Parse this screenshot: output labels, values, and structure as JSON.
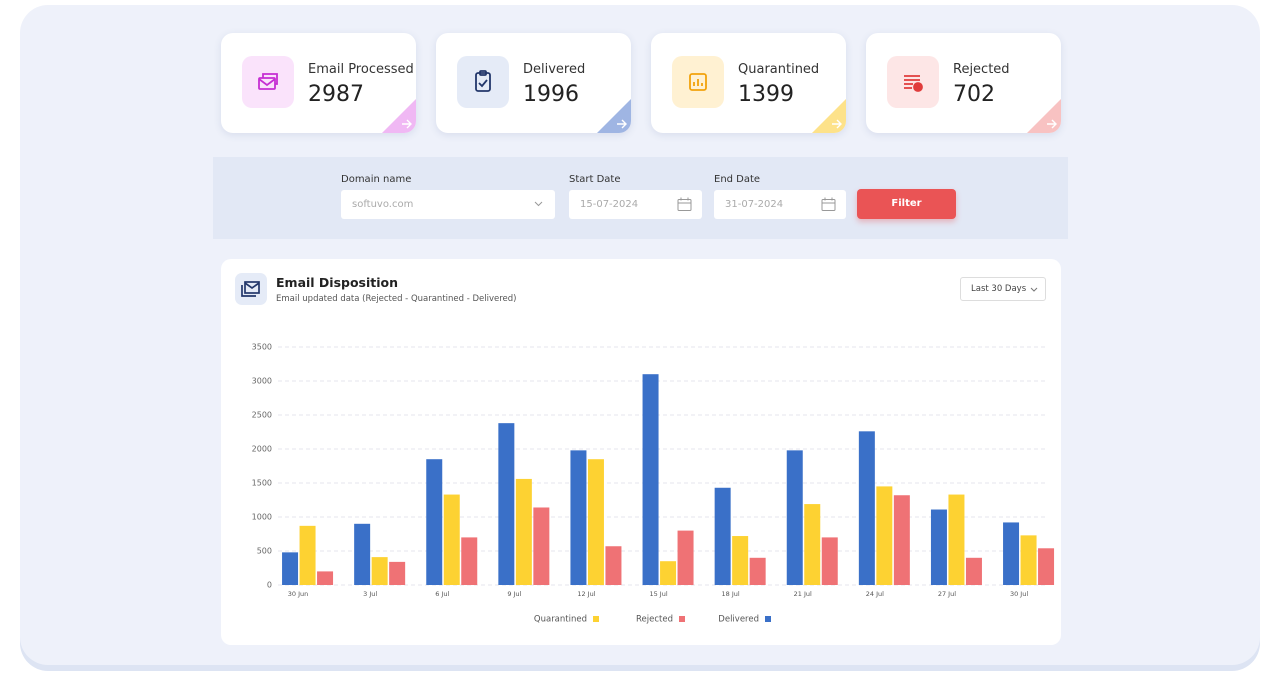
{
  "cards": [
    {
      "label": "Email Processed",
      "value": 2987
    },
    {
      "label": "Delivered",
      "value": 1996
    },
    {
      "label": "Quarantined",
      "value": 1399
    },
    {
      "label": "Rejected",
      "value": 702
    }
  ],
  "filter": {
    "domain_label": "Domain name",
    "domain_value": "softuvo.com",
    "start_label": "Start Date",
    "start_value": "15-07-2024",
    "end_label": "End Date",
    "end_value": "31-07-2024",
    "button": "Filter"
  },
  "panel": {
    "title": "Email Disposition",
    "subtitle": "Email updated data (Rejected - Quarantined - Delivered)",
    "range": "Last 30 Days"
  },
  "chart_data": {
    "type": "bar",
    "categories": [
      "30 Jun",
      "3 Jul",
      "6 Jul",
      "9 Jul",
      "12 Jul",
      "15 Jul",
      "18 Jul",
      "21 Jul",
      "24 Jul",
      "27 Jul",
      "30 Jul"
    ],
    "series": [
      {
        "name": "Quarantined",
        "color": "#fdd232",
        "values": [
          870,
          410,
          1330,
          1560,
          1850,
          350,
          720,
          1190,
          1450,
          1330,
          730
        ]
      },
      {
        "name": "Rejected",
        "color": "#ef7275",
        "values": [
          200,
          340,
          700,
          1140,
          570,
          800,
          400,
          700,
          1320,
          400,
          540
        ]
      },
      {
        "name": "Delivered",
        "color": "#3a70c8",
        "values": [
          480,
          900,
          1850,
          2380,
          1980,
          3100,
          1430,
          1980,
          2260,
          1110,
          920
        ]
      }
    ],
    "ylim": [
      0,
      3500
    ],
    "yticks": [
      0,
      500,
      1000,
      1500,
      2000,
      2500,
      3000,
      3500
    ],
    "grid": true
  }
}
